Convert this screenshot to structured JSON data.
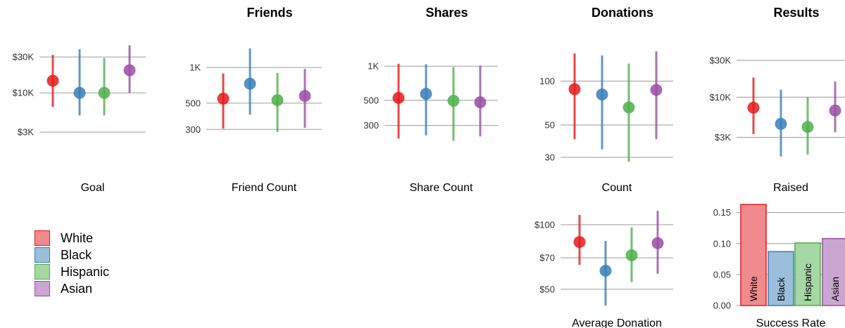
{
  "groups": [
    {
      "name": "White",
      "color": "#e41a1c",
      "fill": "#f08a8c"
    },
    {
      "name": "Black",
      "color": "#377eb8",
      "fill": "#9bbedb"
    },
    {
      "name": "Hispanic",
      "color": "#4daf4a",
      "fill": "#a6d7a4"
    },
    {
      "name": "Asian",
      "color": "#984ea3",
      "fill": "#cba6d1"
    }
  ],
  "chart_data": [
    {
      "id": "goal",
      "type": "scatter",
      "scale": "log",
      "title": "",
      "xlabel": "Goal",
      "ylim": [
        2000,
        55000
      ],
      "ticks": [
        {
          "v": 3000,
          "label": "$3K"
        },
        {
          "v": 10000,
          "label": "$10K"
        },
        {
          "v": 30000,
          "label": "$30K"
        }
      ],
      "categories": [
        "White",
        "Black",
        "Hispanic",
        "Asian"
      ],
      "points": [
        {
          "y": 14500,
          "lo": 6500,
          "hi": 32000
        },
        {
          "y": 10000,
          "lo": 5000,
          "hi": 38000
        },
        {
          "y": 10000,
          "lo": 5000,
          "hi": 29000
        },
        {
          "y": 20000,
          "lo": 10000,
          "hi": 43000
        }
      ]
    },
    {
      "id": "friends",
      "type": "scatter",
      "scale": "log",
      "title": "Friends",
      "xlabel": "Friend Count",
      "ylim": [
        220,
        1800
      ],
      "ticks": [
        {
          "v": 300,
          "label": "300"
        },
        {
          "v": 500,
          "label": "500"
        },
        {
          "v": 1000,
          "label": "1K"
        }
      ],
      "categories": [
        "White",
        "Black",
        "Hispanic",
        "Asian"
      ],
      "points": [
        {
          "y": 545,
          "lo": 305,
          "hi": 890
        },
        {
          "y": 730,
          "lo": 400,
          "hi": 1450
        },
        {
          "y": 530,
          "lo": 285,
          "hi": 900
        },
        {
          "y": 575,
          "lo": 310,
          "hi": 970
        }
      ]
    },
    {
      "id": "shares",
      "type": "scatter",
      "scale": "log",
      "title": "Shares",
      "xlabel": "Share Count",
      "ylim": [
        200,
        1800
      ],
      "ticks": [
        {
          "v": 300,
          "label": "300"
        },
        {
          "v": 500,
          "label": "500"
        },
        {
          "v": 1000,
          "label": "1K"
        }
      ],
      "categories": [
        "White",
        "Black",
        "Hispanic",
        "Asian"
      ],
      "points": [
        {
          "y": 525,
          "lo": 230,
          "hi": 1050
        },
        {
          "y": 570,
          "lo": 245,
          "hi": 1040
        },
        {
          "y": 495,
          "lo": 220,
          "hi": 980
        },
        {
          "y": 480,
          "lo": 240,
          "hi": 1010
        }
      ]
    },
    {
      "id": "donations",
      "type": "scatter",
      "scale": "log",
      "title": "Donations",
      "xlabel": "Count",
      "ylim": [
        23,
        200
      ],
      "ticks": [
        {
          "v": 30,
          "label": "30"
        },
        {
          "v": 50,
          "label": "50"
        },
        {
          "v": 100,
          "label": "100"
        }
      ],
      "categories": [
        "White",
        "Black",
        "Hispanic",
        "Asian"
      ],
      "points": [
        {
          "y": 88,
          "lo": 40,
          "hi": 155
        },
        {
          "y": 81,
          "lo": 34,
          "hi": 150
        },
        {
          "y": 66,
          "lo": 28,
          "hi": 132
        },
        {
          "y": 87,
          "lo": 40,
          "hi": 160
        }
      ]
    },
    {
      "id": "results",
      "type": "scatter",
      "scale": "log",
      "title": "Results",
      "xlabel": "Raised",
      "ylim": [
        1000,
        60000
      ],
      "ticks": [
        {
          "v": 3000,
          "label": "$3K"
        },
        {
          "v": 10000,
          "label": "$10K"
        },
        {
          "v": 30000,
          "label": "$30K"
        }
      ],
      "categories": [
        "White",
        "Black",
        "Hispanic",
        "Asian"
      ],
      "points": [
        {
          "y": 7300,
          "lo": 3300,
          "hi": 18000
        },
        {
          "y": 4500,
          "lo": 1700,
          "hi": 12500
        },
        {
          "y": 4100,
          "lo": 1800,
          "hi": 10000
        },
        {
          "y": 6700,
          "lo": 3500,
          "hi": 16000
        }
      ]
    },
    {
      "id": "avg-donation",
      "type": "scatter",
      "scale": "log",
      "title": "",
      "xlabel": "Average Donation",
      "ylim": [
        42,
        130
      ],
      "ticks": [
        {
          "v": 50,
          "label": "$50"
        },
        {
          "v": 70,
          "label": "$70"
        },
        {
          "v": 100,
          "label": "$100"
        }
      ],
      "categories": [
        "White",
        "Black",
        "Hispanic",
        "Asian"
      ],
      "points": [
        {
          "y": 83,
          "lo": 65,
          "hi": 111
        },
        {
          "y": 61,
          "lo": 42,
          "hi": 84
        },
        {
          "y": 72,
          "lo": 54,
          "hi": 97
        },
        {
          "y": 82,
          "lo": 59,
          "hi": 116
        }
      ]
    },
    {
      "id": "success-rate",
      "type": "bar",
      "scale": "linear",
      "title": "",
      "xlabel": "Success Rate",
      "ylim": [
        0,
        0.17
      ],
      "ticks": [
        {
          "v": 0,
          "label": "0.00"
        },
        {
          "v": 0.05,
          "label": "0.05"
        },
        {
          "v": 0.1,
          "label": "0.10"
        },
        {
          "v": 0.15,
          "label": "0.15"
        }
      ],
      "categories": [
        "White",
        "Black",
        "Hispanic",
        "Asian"
      ],
      "values": [
        0.163,
        0.087,
        0.101,
        0.108
      ]
    }
  ]
}
